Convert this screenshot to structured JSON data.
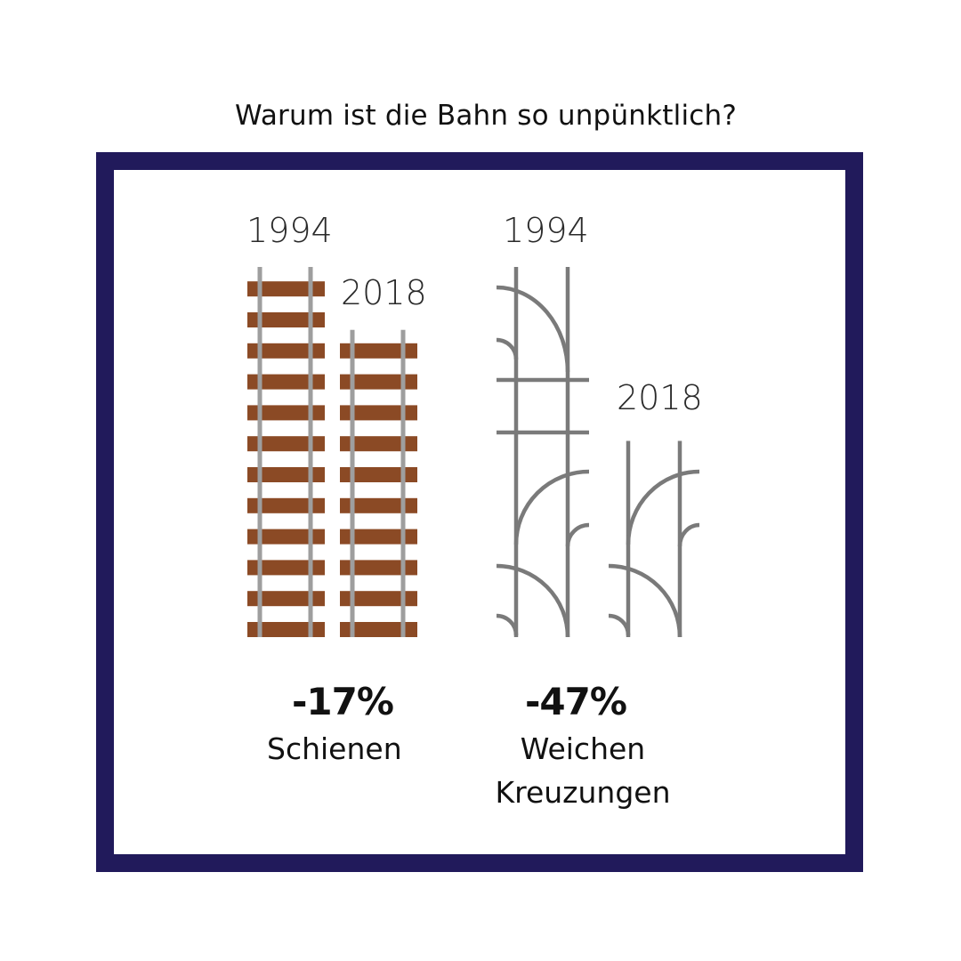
{
  "title": "Warum ist die Bahn so unpünktlich?",
  "colors": {
    "frame": "#211a5b",
    "sleeper": "#8b4a25",
    "rail": "#9e9e9e",
    "switch_rail": "#7a7a7a"
  },
  "chart_data": [
    {
      "type": "bar",
      "icon": "rail-track-icon",
      "categories": [
        "1994",
        "2018"
      ],
      "values": [
        100,
        83
      ],
      "change_label": "-17%",
      "label": "Schienen"
    },
    {
      "type": "bar",
      "icon": "rail-switch-icon",
      "categories": [
        "1994",
        "2018"
      ],
      "values": [
        100,
        53
      ],
      "change_label": "-47%",
      "label_lines": [
        "Weichen",
        "Kreuzungen"
      ]
    }
  ]
}
